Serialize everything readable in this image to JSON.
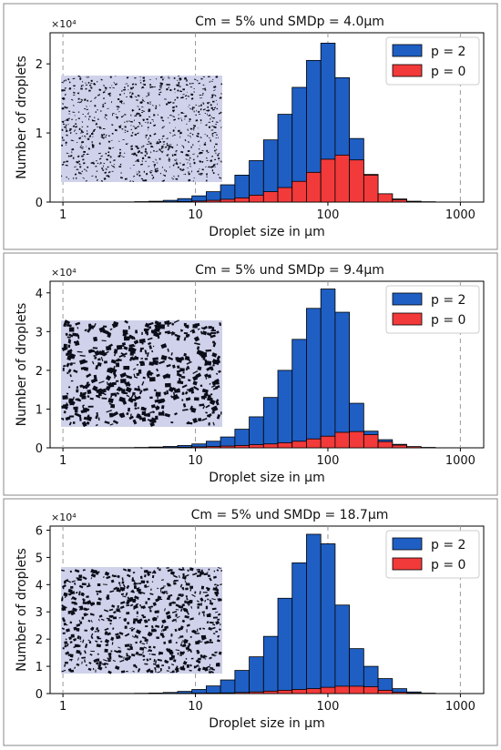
{
  "colors": {
    "blue": "#1f5fc4",
    "red": "#f23a3a",
    "edge": "#000000",
    "inset_dark": "#0b0d18",
    "inset_light": "#cfd2ea"
  },
  "chart_data": [
    {
      "type": "bar",
      "title": "Cm = 5% und SMDp = 4.0µm",
      "xlabel": "Droplet size in µm",
      "ylabel": "Number of droplets",
      "y_offset_label": "×10⁴",
      "x_scale": "log",
      "xlim": [
        0.8,
        1500
      ],
      "ylim": [
        0,
        24500
      ],
      "x_ticks": [
        1,
        10,
        100,
        1000
      ],
      "x_tick_labels": [
        "1",
        "10",
        "100",
        "1000"
      ],
      "y_ticks": [
        0,
        10000,
        20000
      ],
      "y_tick_labels": [
        "0",
        "1",
        "2"
      ],
      "grid": "x-dashed",
      "legend_position": "top-right",
      "bin_edges": [
        1.0,
        1.28,
        1.65,
        2.11,
        2.71,
        3.48,
        4.46,
        5.72,
        7.34,
        9.41,
        12.07,
        15.48,
        19.86,
        25.47,
        32.67,
        41.9,
        53.74,
        68.93,
        88.41,
        113.4,
        145.45,
        186.56,
        239.28,
        306.9,
        393.64,
        504.9,
        647.6,
        830.6
      ],
      "series": [
        {
          "name": "p = 2",
          "color": "#1f5fc4",
          "values": [
            0,
            0,
            0,
            0,
            20,
            60,
            120,
            250,
            500,
            900,
            1500,
            2500,
            3900,
            6000,
            9000,
            12700,
            16600,
            20500,
            23000,
            18000,
            9200,
            4000,
            1200,
            450,
            120,
            40,
            0
          ]
        },
        {
          "name": "p = 0",
          "color": "#f23a3a",
          "values": [
            0,
            0,
            0,
            0,
            0,
            10,
            20,
            40,
            80,
            150,
            250,
            400,
            600,
            1000,
            1500,
            2100,
            3000,
            4300,
            6200,
            6800,
            6100,
            3900,
            1200,
            350,
            90,
            30,
            0
          ]
        }
      ]
    },
    {
      "type": "bar",
      "title": "Cm = 5% und SMDp = 9.4µm",
      "xlabel": "Droplet size in µm",
      "ylabel": "Number of droplets",
      "y_offset_label": "×10⁴",
      "x_scale": "log",
      "xlim": [
        0.8,
        1500
      ],
      "ylim": [
        0,
        43000
      ],
      "x_ticks": [
        1,
        10,
        100,
        1000
      ],
      "x_tick_labels": [
        "1",
        "10",
        "100",
        "1000"
      ],
      "y_ticks": [
        0,
        10000,
        20000,
        30000,
        40000
      ],
      "y_tick_labels": [
        "0",
        "1",
        "2",
        "3",
        "4"
      ],
      "grid": "x-dashed",
      "legend_position": "top-right",
      "bin_edges": [
        1.0,
        1.28,
        1.65,
        2.11,
        2.71,
        3.48,
        4.46,
        5.72,
        7.34,
        9.41,
        12.07,
        15.48,
        19.86,
        25.47,
        32.67,
        41.9,
        53.74,
        68.93,
        88.41,
        113.4,
        145.45,
        186.56,
        239.28,
        306.9,
        393.64,
        504.9,
        647.6,
        830.6
      ],
      "series": [
        {
          "name": "p = 2",
          "color": "#1f5fc4",
          "values": [
            0,
            0,
            0,
            0,
            50,
            100,
            200,
            350,
            600,
            1000,
            1700,
            2800,
            4800,
            8000,
            13000,
            20000,
            28000,
            36000,
            41000,
            35000,
            11500,
            4300,
            2100,
            900,
            300,
            80,
            0
          ]
        },
        {
          "name": "p = 0",
          "color": "#f23a3a",
          "values": [
            0,
            0,
            0,
            0,
            0,
            20,
            40,
            80,
            150,
            250,
            350,
            450,
            600,
            800,
            1000,
            1300,
            1700,
            2300,
            3000,
            4000,
            4200,
            3400,
            1600,
            700,
            300,
            80,
            0
          ]
        }
      ]
    },
    {
      "type": "bar",
      "title": "Cm = 5% und SMDp = 18.7µm",
      "xlabel": "Droplet size in µm",
      "ylabel": "Number of droplets",
      "y_offset_label": "×10⁴",
      "x_scale": "log",
      "xlim": [
        0.8,
        1500
      ],
      "ylim": [
        0,
        61500
      ],
      "x_ticks": [
        1,
        10,
        100,
        1000
      ],
      "x_tick_labels": [
        "1",
        "10",
        "100",
        "1000"
      ],
      "y_ticks": [
        0,
        10000,
        20000,
        30000,
        40000,
        50000,
        60000
      ],
      "y_tick_labels": [
        "0",
        "1",
        "2",
        "3",
        "4",
        "5",
        "6"
      ],
      "grid": "x-dashed",
      "legend_position": "top-right",
      "bin_edges": [
        1.0,
        1.28,
        1.65,
        2.11,
        2.71,
        3.48,
        4.46,
        5.72,
        7.34,
        9.41,
        12.07,
        15.48,
        19.86,
        25.47,
        32.67,
        41.9,
        53.74,
        68.93,
        88.41,
        113.4,
        145.45,
        186.56,
        239.28,
        306.9,
        393.64,
        504.9,
        647.6,
        830.6
      ],
      "series": [
        {
          "name": "p = 2",
          "color": "#1f5fc4",
          "values": [
            0,
            0,
            0,
            0,
            50,
            100,
            200,
            400,
            800,
            1500,
            2800,
            5000,
            8500,
            13500,
            21000,
            35000,
            48000,
            58500,
            55000,
            32500,
            16500,
            10000,
            5500,
            1800,
            600,
            150,
            0
          ]
        },
        {
          "name": "p = 0",
          "color": "#f23a3a",
          "values": [
            0,
            0,
            0,
            0,
            0,
            0,
            20,
            50,
            100,
            150,
            200,
            250,
            400,
            600,
            900,
            1200,
            1500,
            1800,
            2300,
            2700,
            2700,
            2500,
            1200,
            500,
            200,
            50,
            0
          ]
        }
      ]
    }
  ]
}
